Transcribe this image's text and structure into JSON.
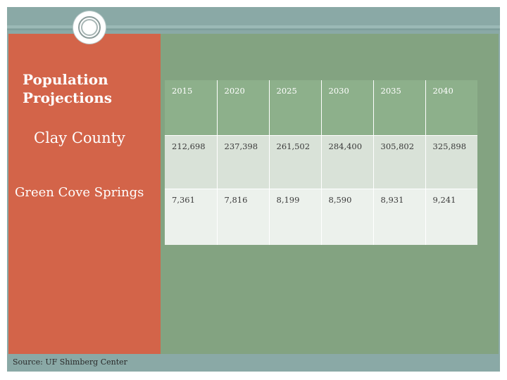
{
  "panel": {
    "title": "Population Projections",
    "label_clay": "Clay County",
    "label_green": "Green Cove Springs",
    "source": "Source: UF Shimberg Center"
  },
  "table": {
    "years": [
      "2015",
      "2020",
      "2025",
      "2030",
      "2035",
      "2040"
    ],
    "clay": [
      "212,698",
      "237,398",
      "261,502",
      "284,400",
      "305,802",
      "325,898"
    ],
    "green": [
      "7,361",
      "7,816",
      "8,199",
      "8,590",
      "8,931",
      "9,241"
    ]
  }
}
